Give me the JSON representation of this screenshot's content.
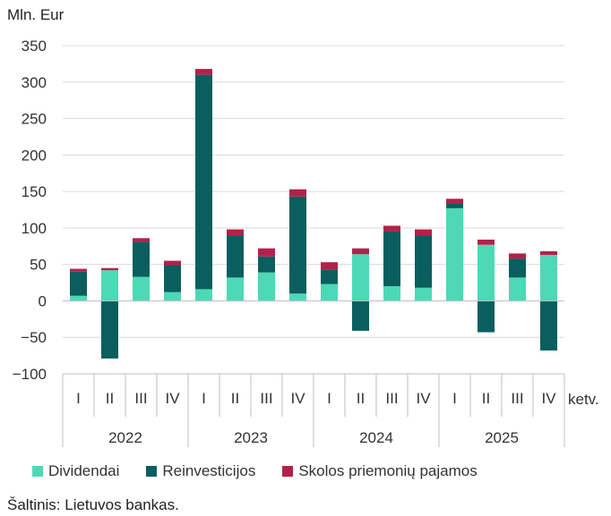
{
  "chart_data": {
    "type": "bar",
    "stacked": true,
    "y_unit_label": "Mln. Eur",
    "x_axis_suffix": "ketv.",
    "ylim": [
      -100,
      350
    ],
    "yticks": [
      -100,
      -50,
      0,
      50,
      100,
      150,
      200,
      250,
      300,
      350
    ],
    "ytick_labels": [
      "−100",
      "−50",
      "0",
      "50",
      "100",
      "150",
      "200",
      "250",
      "300",
      "350"
    ],
    "quarters": [
      "I",
      "II",
      "III",
      "IV",
      "I",
      "II",
      "III",
      "IV",
      "I",
      "II",
      "III",
      "IV",
      "I",
      "II",
      "III",
      "IV"
    ],
    "years": [
      "2022",
      "2023",
      "2024",
      "2025"
    ],
    "grid": "horizontal",
    "legend_position": "bottom",
    "series": [
      {
        "name": "Dividendai",
        "color": "#4dd9b5",
        "values": [
          7,
          42,
          33,
          12,
          16,
          32,
          39,
          10,
          23,
          64,
          20,
          18,
          127,
          77,
          32,
          63
        ]
      },
      {
        "name": "Reinvesticijos",
        "color": "#0b5e5e",
        "values": [
          33,
          -79,
          48,
          37,
          294,
          58,
          22,
          133,
          20,
          -41,
          75,
          72,
          6,
          -43,
          26,
          -68
        ]
      },
      {
        "name": "Skolos priemonių pajamos",
        "color": "#b5204a",
        "values": [
          4,
          3,
          5,
          6,
          8,
          8,
          11,
          10,
          10,
          8,
          8,
          8,
          7,
          7,
          7,
          5
        ]
      }
    ]
  },
  "source": "Šaltinis: Lietuvos bankas."
}
